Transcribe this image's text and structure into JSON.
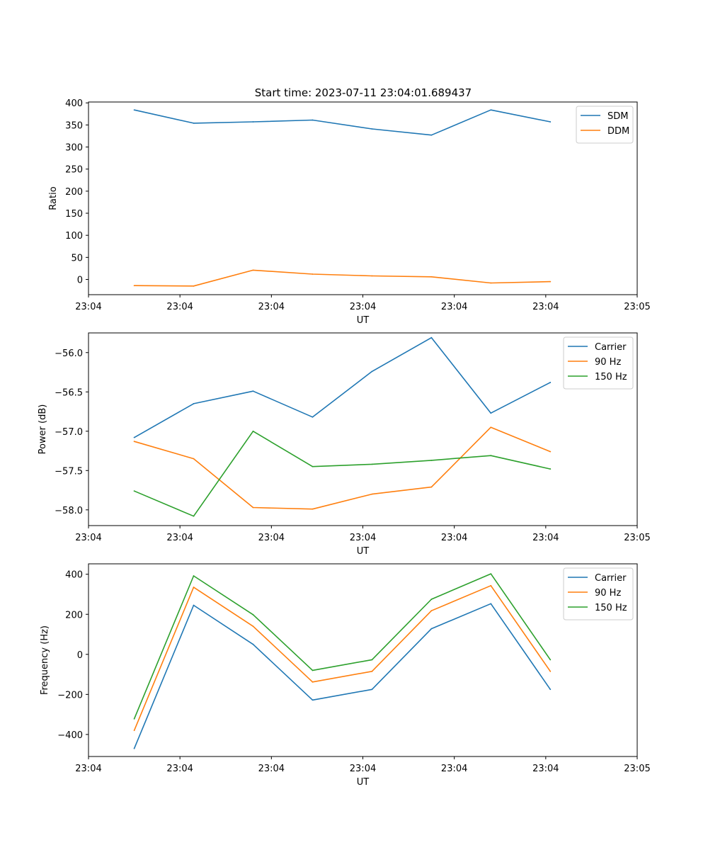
{
  "title": "Start time: 2023-07-11 23:04:01.689437",
  "chart_data": [
    {
      "type": "line",
      "title": "Start time: 2023-07-11 23:04:01.689437",
      "xlabel": "UT",
      "ylabel": "Ratio",
      "xlim": [
        0,
        6
      ],
      "ylim": [
        -34.5,
        402
      ],
      "x": [
        0.5,
        1.15,
        1.8,
        2.45,
        3.1,
        3.75,
        4.4,
        5.05
      ],
      "x_ticks": [
        0.0,
        1.0,
        2.0,
        3.0,
        4.0,
        5.0,
        6.0
      ],
      "x_tick_labels": [
        "23:04",
        "23:04",
        "23:04",
        "23:04",
        "23:04",
        "23:04",
        "23:05"
      ],
      "y_ticks": [
        0,
        50,
        100,
        150,
        200,
        250,
        300,
        350,
        400
      ],
      "y_tick_labels": [
        "0",
        "50",
        "100",
        "150",
        "200",
        "250",
        "300",
        "350",
        "400"
      ],
      "legend_position": "top-right",
      "series": [
        {
          "name": "SDM",
          "color": "#1f77b4",
          "values": [
            384,
            354,
            357,
            361,
            341,
            327,
            384,
            357
          ]
        },
        {
          "name": "DDM",
          "color": "#ff7f0e",
          "values": [
            -14,
            -15,
            21,
            12,
            8,
            6,
            -8,
            -5
          ]
        }
      ]
    },
    {
      "type": "line",
      "title": "",
      "xlabel": "UT",
      "ylabel": "Power (dB)",
      "xlim": [
        0,
        6
      ],
      "ylim": [
        -58.2,
        -55.75
      ],
      "x": [
        0.5,
        1.15,
        1.8,
        2.45,
        3.1,
        3.75,
        4.4,
        5.05
      ],
      "x_ticks": [
        0.0,
        1.0,
        2.0,
        3.0,
        4.0,
        5.0,
        6.0
      ],
      "x_tick_labels": [
        "23:04",
        "23:04",
        "23:04",
        "23:04",
        "23:04",
        "23:04",
        "23:05"
      ],
      "y_ticks": [
        -58.0,
        -57.5,
        -57.0,
        -56.5,
        -56.0
      ],
      "y_tick_labels": [
        "−58.0",
        "−57.5",
        "−57.0",
        "−56.5",
        "−56.0"
      ],
      "legend_position": "top-right",
      "series": [
        {
          "name": "Carrier",
          "color": "#1f77b4",
          "values": [
            -57.08,
            -56.65,
            -56.49,
            -56.82,
            -56.24,
            -55.81,
            -56.77,
            -56.38
          ]
        },
        {
          "name": "90 Hz",
          "color": "#ff7f0e",
          "values": [
            -57.13,
            -57.35,
            -57.97,
            -57.99,
            -57.8,
            -57.71,
            -56.95,
            -57.26
          ]
        },
        {
          "name": "150 Hz",
          "color": "#2ca02c",
          "values": [
            -57.76,
            -58.08,
            -57.0,
            -57.45,
            -57.42,
            -57.37,
            -57.31,
            -57.48
          ]
        }
      ]
    },
    {
      "type": "line",
      "title": "",
      "xlabel": "UT",
      "ylabel": "Frequency (Hz)",
      "xlim": [
        0,
        6
      ],
      "ylim": [
        -510,
        452
      ],
      "x": [
        0.5,
        1.15,
        1.8,
        2.45,
        3.1,
        3.75,
        4.4,
        5.05
      ],
      "x_ticks": [
        0.0,
        1.0,
        2.0,
        3.0,
        4.0,
        5.0,
        6.0
      ],
      "x_tick_labels": [
        "23:04",
        "23:04",
        "23:04",
        "23:04",
        "23:04",
        "23:04",
        "23:05"
      ],
      "y_ticks": [
        -400,
        -200,
        0,
        200,
        400
      ],
      "y_tick_labels": [
        "−400",
        "−200",
        "0",
        "200",
        "400"
      ],
      "legend_position": "top-right",
      "series": [
        {
          "name": "Carrier",
          "color": "#1f77b4",
          "values": [
            -470,
            245,
            50,
            -228,
            -175,
            128,
            253,
            -175
          ]
        },
        {
          "name": "90 Hz",
          "color": "#ff7f0e",
          "values": [
            -380,
            335,
            140,
            -138,
            -85,
            218,
            343,
            -85
          ]
        },
        {
          "name": "150 Hz",
          "color": "#2ca02c",
          "values": [
            -322,
            392,
            198,
            -80,
            -27,
            275,
            402,
            -27
          ]
        }
      ]
    }
  ]
}
